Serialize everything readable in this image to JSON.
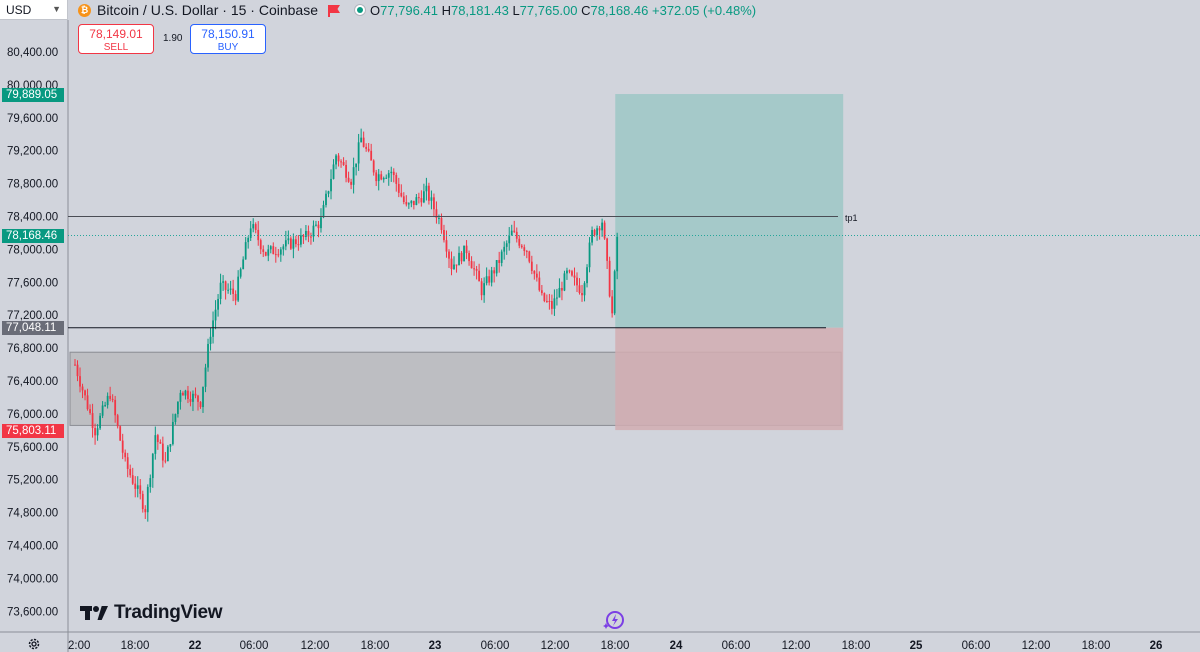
{
  "header": {
    "currency": "USD",
    "symbol": "Bitcoin / U.S. Dollar · 15 · Coinbase",
    "btc_glyph": "₿",
    "ohlc": {
      "o_label": "O",
      "o": "77,796.41",
      "h_label": "H",
      "h": "78,181.43",
      "l_label": "L",
      "l": "77,765.00",
      "c_label": "C",
      "c": "78,168.46",
      "change": "+372.05 (+0.48%)"
    }
  },
  "trade": {
    "sell_price": "78,149.01",
    "sell_label": "SELL",
    "spread": "1.90",
    "buy_price": "78,150.91",
    "buy_label": "BUY"
  },
  "price_tags": {
    "target": "79,889.05",
    "last": "78,168.46",
    "level": "77,048.11",
    "stop": "75,803.11"
  },
  "labels": {
    "tp1": "tp1",
    "logo": "TradingView"
  },
  "colors": {
    "background": "#d1d4dc",
    "up": "#089981",
    "down": "#f23645",
    "target_zone": "#a5c9c9",
    "stop_zone": "#d2adb2",
    "range_box": "#bdbec2"
  },
  "chart_data": {
    "type": "candlestick",
    "title": "Bitcoin / U.S. Dollar · 15 · Coinbase",
    "timeframe": "15",
    "y_ticks": [
      "80,400.00",
      "80,000.00",
      "79,600.00",
      "79,200.00",
      "78,800.00",
      "78,400.00",
      "78,000.00",
      "77,600.00",
      "77,200.00",
      "76,800.00",
      "76,400.00",
      "76,000.00",
      "75,600.00",
      "75,200.00",
      "74,800.00",
      "74,400.00",
      "74,000.00",
      "73,600.00"
    ],
    "x_ticks": [
      ":2:00",
      "18:00",
      "22",
      "06:00",
      "12:00",
      "18:00",
      "23",
      "06:00",
      "12:00",
      "18:00",
      "24",
      "06:00",
      "12:00",
      "18:00",
      "25",
      "06:00",
      "12:00",
      "18:00",
      "26"
    ],
    "ylim": [
      73400,
      80650
    ],
    "price_path": [
      {
        "t": "21 12:00",
        "p": 76600
      },
      {
        "t": "21 14:00",
        "p": 75800
      },
      {
        "t": "21 15:30",
        "p": 76250
      },
      {
        "t": "21 17:00",
        "p": 75400
      },
      {
        "t": "21 19:00",
        "p": 74850
      },
      {
        "t": "21 20:00",
        "p": 75750
      },
      {
        "t": "21 21:00",
        "p": 75400
      },
      {
        "t": "21 22:30",
        "p": 76300
      },
      {
        "t": "22 00:30",
        "p": 76150
      },
      {
        "t": "22 01:30",
        "p": 77000
      },
      {
        "t": "22 02:30",
        "p": 77550
      },
      {
        "t": "22 04:00",
        "p": 77450
      },
      {
        "t": "22 05:30",
        "p": 78300
      },
      {
        "t": "22 07:00",
        "p": 77950
      },
      {
        "t": "22 09:00",
        "p": 78050
      },
      {
        "t": "22 11:00",
        "p": 78150
      },
      {
        "t": "22 12:30",
        "p": 78350
      },
      {
        "t": "22 14:00",
        "p": 79150
      },
      {
        "t": "22 15:30",
        "p": 78850
      },
      {
        "t": "22 16:30",
        "p": 79350
      },
      {
        "t": "22 18:00",
        "p": 78900
      },
      {
        "t": "22 19:30",
        "p": 78950
      },
      {
        "t": "22 21:00",
        "p": 78500
      },
      {
        "t": "22 23:00",
        "p": 78700
      },
      {
        "t": "23 00:30",
        "p": 78300
      },
      {
        "t": "23 01:30",
        "p": 77800
      },
      {
        "t": "23 03:00",
        "p": 78000
      },
      {
        "t": "23 04:30",
        "p": 77500
      },
      {
        "t": "23 06:00",
        "p": 77800
      },
      {
        "t": "23 07:30",
        "p": 78200
      },
      {
        "t": "23 09:00",
        "p": 78000
      },
      {
        "t": "23 10:30",
        "p": 77400
      },
      {
        "t": "23 11:30",
        "p": 77300
      },
      {
        "t": "23 13:00",
        "p": 77700
      },
      {
        "t": "23 14:30",
        "p": 77500
      },
      {
        "t": "23 15:30",
        "p": 78200
      },
      {
        "t": "23 16:30",
        "p": 78350
      },
      {
        "t": "23 17:30",
        "p": 77200
      },
      {
        "t": "23 18:00",
        "p": 78168.46
      }
    ],
    "horizontal_lines": [
      {
        "label": "tp1",
        "price": 78400
      },
      {
        "label": "",
        "price": 77048.11
      }
    ],
    "last_price": 78168.46,
    "long_position": {
      "entry": 77048.11,
      "target": 79889.05,
      "stop": 75803.11,
      "start": "23 18:00",
      "end": "24 16:30"
    },
    "range_box": {
      "top": 76750,
      "bottom": 75860,
      "start": "21 12:00",
      "end": "24 16:30"
    }
  }
}
